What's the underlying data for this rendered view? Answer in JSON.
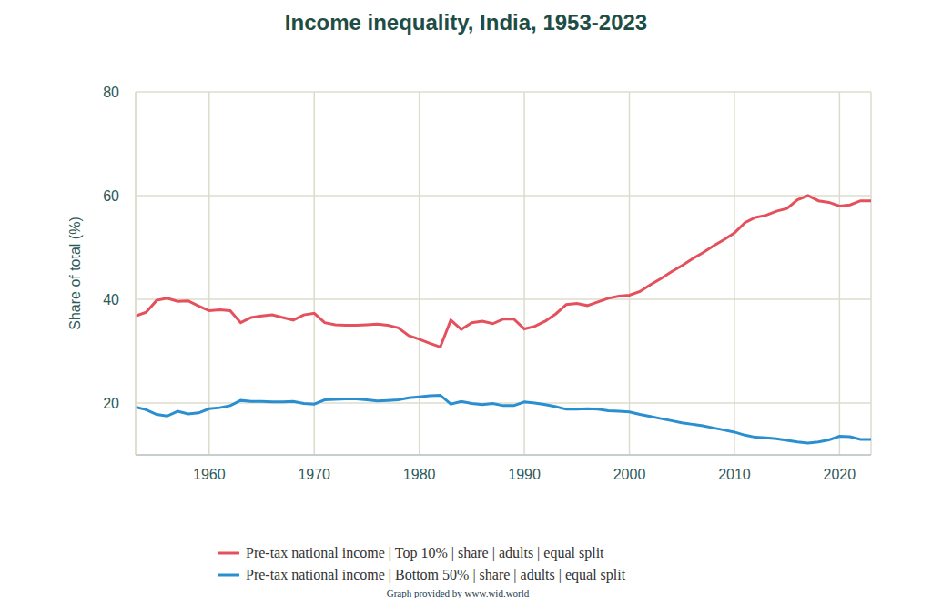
{
  "chart_data": {
    "type": "line",
    "title": "Income inequality, India, 1953-2023",
    "y_label": "Share of total (%)",
    "note": "Graph provided by www.wid.world",
    "legend": "bottom",
    "grid": true,
    "xlim": [
      1953,
      2023
    ],
    "xticks": [
      1960,
      1970,
      1980,
      1990,
      2000,
      2010,
      2020
    ],
    "ylim": [
      10,
      80
    ],
    "yticks": [
      20,
      40,
      60,
      80
    ],
    "x": [
      1953,
      1954,
      1955,
      1956,
      1957,
      1958,
      1959,
      1960,
      1961,
      1962,
      1963,
      1964,
      1965,
      1966,
      1967,
      1968,
      1969,
      1970,
      1971,
      1972,
      1973,
      1974,
      1975,
      1976,
      1977,
      1978,
      1979,
      1980,
      1981,
      1982,
      1983,
      1984,
      1985,
      1986,
      1987,
      1988,
      1989,
      1990,
      1991,
      1992,
      1993,
      1994,
      1995,
      1996,
      1997,
      1998,
      1999,
      2000,
      2001,
      2002,
      2003,
      2004,
      2005,
      2006,
      2007,
      2008,
      2009,
      2010,
      2011,
      2012,
      2013,
      2014,
      2015,
      2016,
      2017,
      2018,
      2019,
      2020,
      2021,
      2022,
      2023
    ],
    "series": [
      {
        "name": "Pre-tax national income | Top 10% | share | adults | equal split",
        "color": "#e5505d",
        "values": [
          36.8,
          37.5,
          39.8,
          40.2,
          39.6,
          39.7,
          38.7,
          37.8,
          38.0,
          37.8,
          35.5,
          36.5,
          36.8,
          37.0,
          36.5,
          36.0,
          37.0,
          37.3,
          35.5,
          35.1,
          35.0,
          35.0,
          35.1,
          35.2,
          35.0,
          34.5,
          33.0,
          32.3,
          31.5,
          30.8,
          36.0,
          34.2,
          35.5,
          35.8,
          35.3,
          36.2,
          36.2,
          34.3,
          34.8,
          35.8,
          37.2,
          39.0,
          39.2,
          38.8,
          39.5,
          40.2,
          40.6,
          40.8,
          41.5,
          42.8,
          44.0,
          45.3,
          46.5,
          47.8,
          49.0,
          50.3,
          51.5,
          52.8,
          54.8,
          55.8,
          56.2,
          57.0,
          57.5,
          59.2,
          60.0,
          59.0,
          58.7,
          58.0,
          58.2,
          59.0,
          59.0
        ]
      },
      {
        "name": "Pre-tax national income | Bottom 50% | share | adults | equal split",
        "color": "#2a8fd0",
        "values": [
          19.2,
          18.7,
          17.8,
          17.5,
          18.4,
          17.9,
          18.1,
          18.9,
          19.1,
          19.5,
          20.5,
          20.3,
          20.3,
          20.2,
          20.2,
          20.3,
          19.9,
          19.8,
          20.6,
          20.7,
          20.8,
          20.8,
          20.6,
          20.4,
          20.5,
          20.6,
          21.0,
          21.2,
          21.4,
          21.5,
          19.8,
          20.3,
          19.9,
          19.7,
          19.9,
          19.5,
          19.5,
          20.2,
          20.0,
          19.7,
          19.3,
          18.8,
          18.8,
          18.9,
          18.8,
          18.5,
          18.4,
          18.3,
          17.8,
          17.4,
          17.0,
          16.6,
          16.2,
          15.9,
          15.6,
          15.2,
          14.8,
          14.4,
          13.8,
          13.4,
          13.3,
          13.1,
          12.8,
          12.5,
          12.3,
          12.5,
          12.9,
          13.6,
          13.5,
          13.0,
          13.0
        ]
      }
    ]
  }
}
